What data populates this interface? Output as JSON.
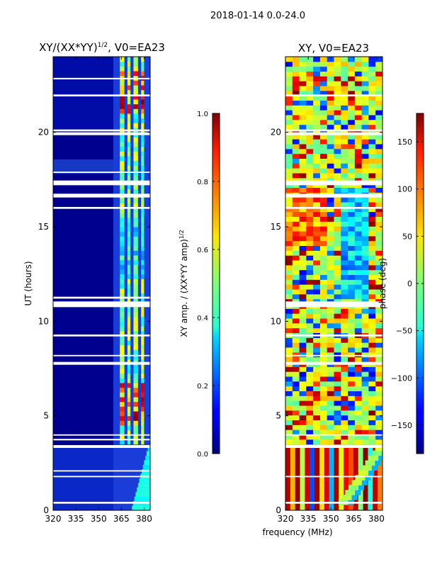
{
  "figure": {
    "suptitle": "2018-01-14 0.0-24.0",
    "xlabel_shared": "frequency (MHz)"
  },
  "chart_data": [
    {
      "type": "heatmap",
      "title": "XY/(XX*YY)^{1/2}, V0=EA23",
      "title_main": "XY/(XX*YY)",
      "title_sup": "1/2",
      "title_tail": ", V0=EA23",
      "xlabel": "frequency (MHz)",
      "ylabel": "UT (hours)",
      "xlim": [
        320,
        384
      ],
      "ylim": [
        0,
        24
      ],
      "xticks": [
        320,
        335,
        350,
        365,
        380
      ],
      "yticks": [
        0,
        5,
        10,
        15,
        20
      ],
      "colormap": "jet",
      "colorbar": {
        "label": "XY amp. / (XX*YY amp)^{1/2}",
        "label_main": "XY amp. / (XX*YY amp)",
        "label_sup": "1/2",
        "range": [
          0.0,
          1.0
        ],
        "ticks": [
          0.0,
          0.2,
          0.4,
          0.6,
          0.8,
          1.0
        ],
        "tick_labels": [
          "0.0",
          "0.2",
          "0.4",
          "0.6",
          "0.8",
          "1.0"
        ]
      },
      "flagged_ut_bands": [
        [
          0.35,
          0.45
        ],
        [
          1.75,
          1.82
        ],
        [
          2.05,
          2.12
        ],
        [
          3.3,
          3.45
        ],
        [
          3.7,
          3.78
        ],
        [
          3.95,
          4.02
        ],
        [
          7.7,
          7.85
        ],
        [
          8.15,
          8.22
        ],
        [
          9.2,
          9.3
        ],
        [
          10.75,
          11.05
        ],
        [
          11.2,
          11.3
        ],
        [
          15.95,
          16.05
        ],
        [
          16.55,
          16.75
        ],
        [
          17.2,
          17.45
        ],
        [
          17.85,
          17.92
        ],
        [
          19.85,
          20.0
        ],
        [
          20.05,
          20.15
        ],
        [
          21.9,
          22.0
        ],
        [
          22.8,
          22.88
        ]
      ],
      "bright_freq_bands_mhz": [
        [
          364,
          367
        ],
        [
          369,
          371
        ],
        [
          373,
          376
        ],
        [
          378,
          380
        ]
      ],
      "values_summary": "low amplitude (~0.0-0.1) below 362 MHz; elevated amplitude (~0.4-1.0) in narrow bands 364-380 MHz, strongest near 4.5-6.5 h and 21-23 h"
    },
    {
      "type": "heatmap",
      "title": "XY, V0=EA23",
      "xlabel": "frequency (MHz)",
      "ylabel": "",
      "xlim": [
        320,
        384
      ],
      "ylim": [
        0,
        24
      ],
      "xticks": [
        320,
        335,
        350,
        365,
        380
      ],
      "yticks": [
        0,
        5,
        10,
        15,
        20
      ],
      "colormap": "jet",
      "colorbar": {
        "label": "phase (deg)",
        "range": [
          -180,
          180
        ],
        "ticks": [
          -150,
          -100,
          -50,
          0,
          50,
          100,
          150
        ],
        "tick_labels": [
          "−150",
          "−100",
          "−50",
          "0",
          "50",
          "100",
          "150"
        ]
      },
      "flagged_ut_bands": [
        [
          0.35,
          0.45
        ],
        [
          1.75,
          1.82
        ],
        [
          3.3,
          3.45
        ],
        [
          3.95,
          4.02
        ],
        [
          7.7,
          7.85
        ],
        [
          8.15,
          8.22
        ],
        [
          9.2,
          9.3
        ],
        [
          10.75,
          11.05
        ],
        [
          15.95,
          16.05
        ],
        [
          16.55,
          16.75
        ],
        [
          17.2,
          17.45
        ],
        [
          19.85,
          20.0
        ],
        [
          20.05,
          20.15
        ],
        [
          21.9,
          22.0
        ]
      ],
      "values_summary": "phase wraps across full -180 to 180 deg range; 0-3.3 h shows vertical red/dark-red stripes with diagonal green drift at 355-384 MHz; above 3.5 h noisy yellow/green with blue features"
    }
  ]
}
